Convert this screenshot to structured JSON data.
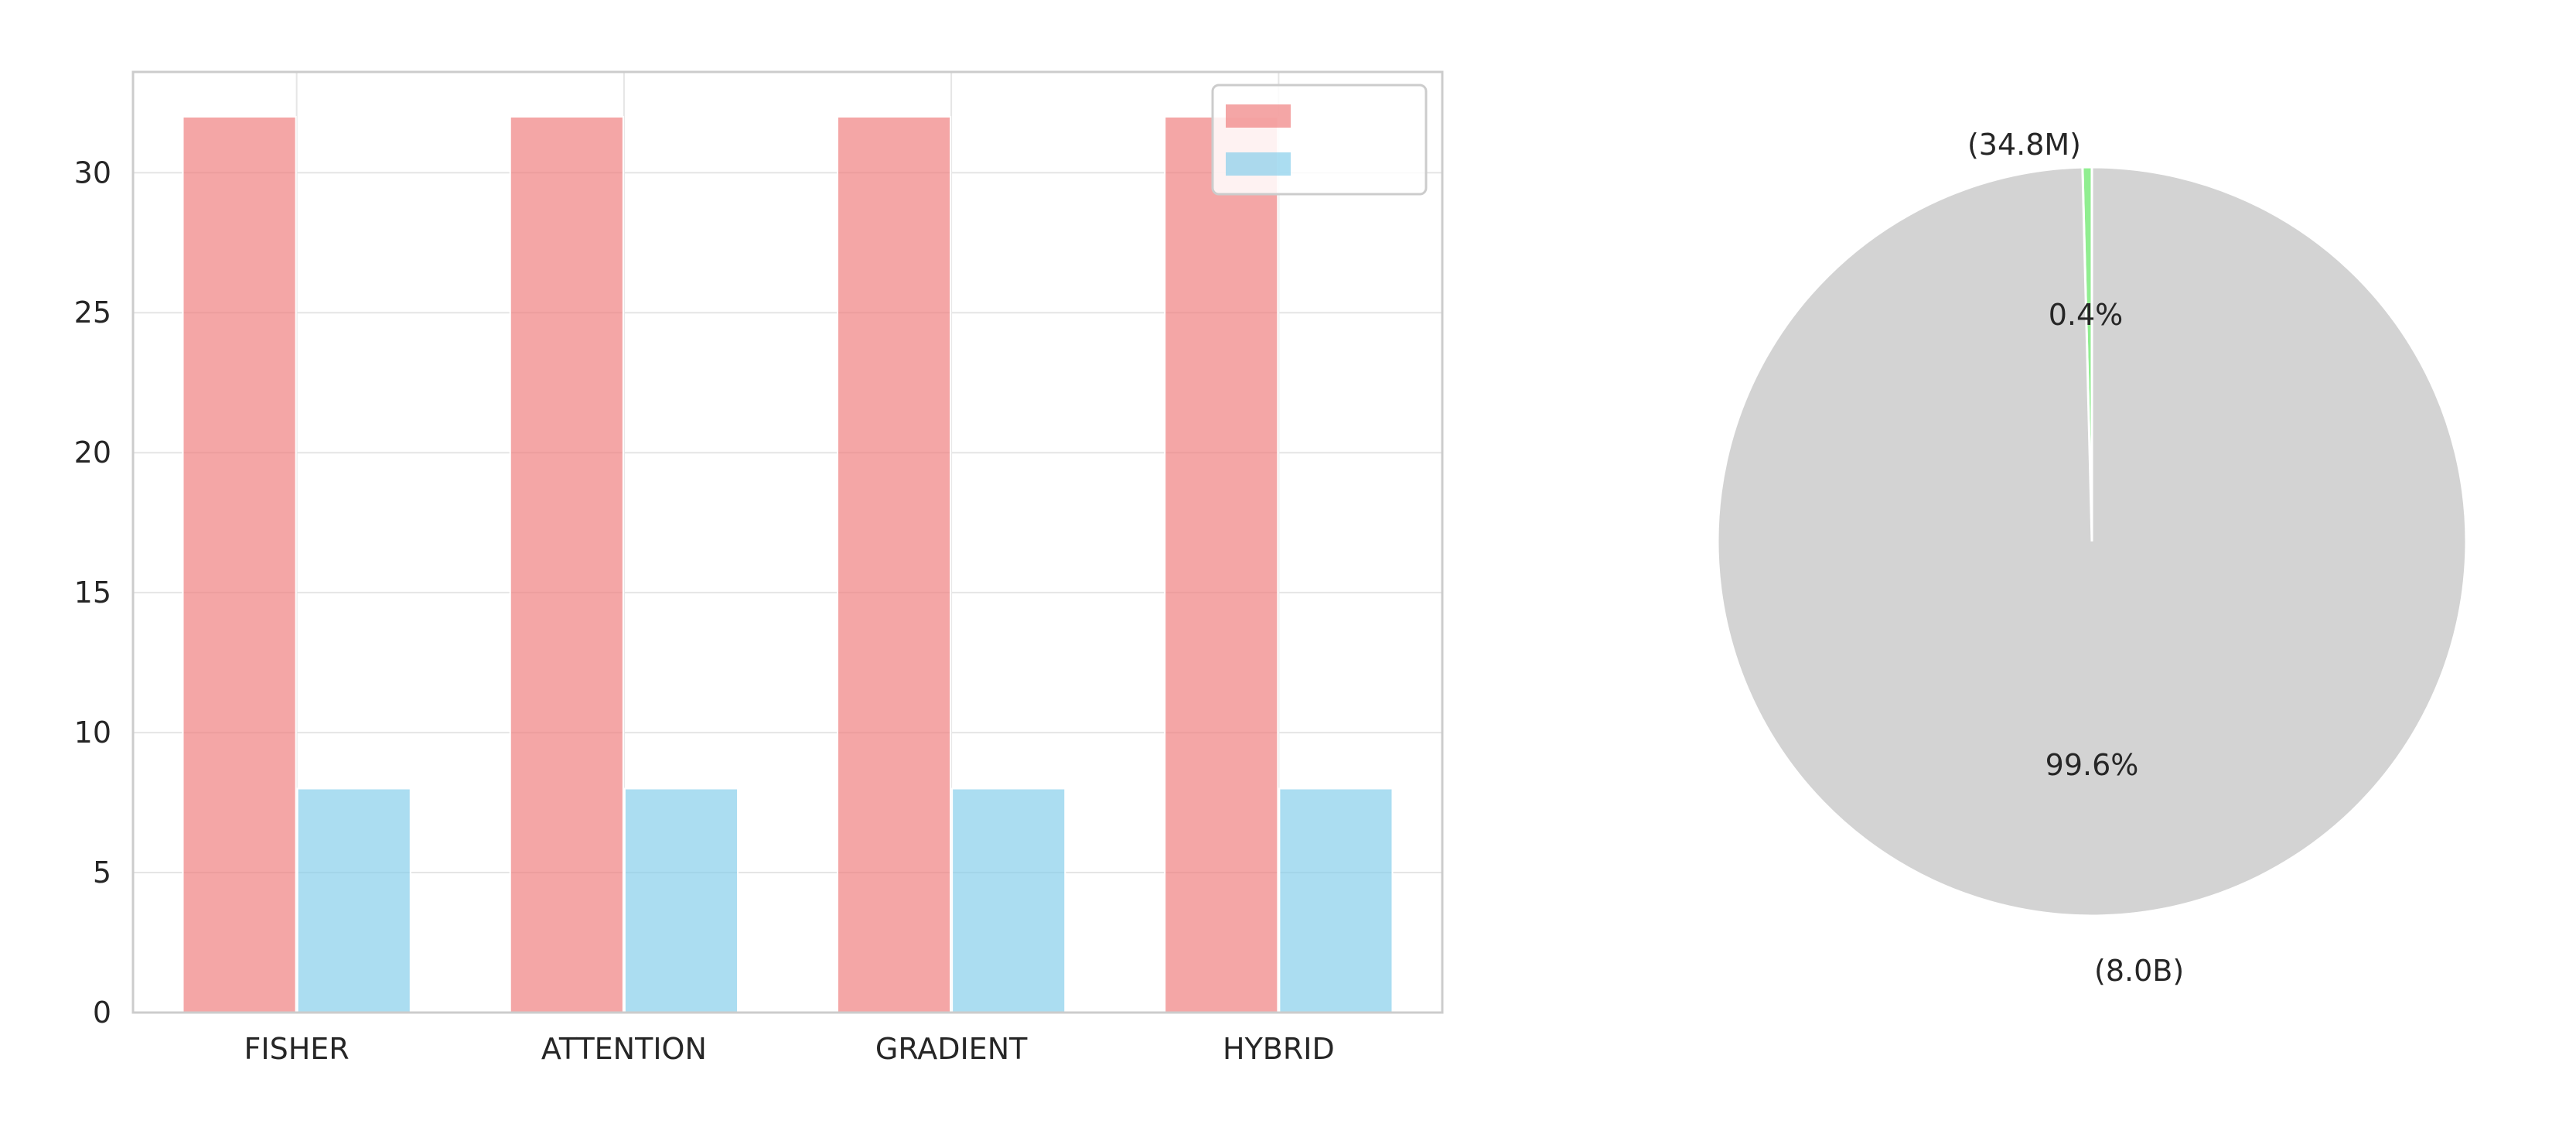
{
  "charts": [
    {
      "type": "bar",
      "title": "",
      "xlabel": "",
      "ylabel": "",
      "categories": [
        "FISHER",
        "ATTENTION",
        "GRADIENT",
        "HYBRID"
      ],
      "ylim": [
        0,
        33.6
      ],
      "yticks": [
        0,
        5,
        10,
        15,
        20,
        25,
        30
      ],
      "grid": true,
      "legend_position": "top-right",
      "series": [
        {
          "name": "",
          "values": [
            32,
            32,
            32,
            32
          ],
          "color": "#f08080"
        },
        {
          "name": "",
          "values": [
            8,
            8,
            8,
            8
          ],
          "color": "#87ceeb"
        }
      ]
    },
    {
      "type": "pie",
      "title": "",
      "slices": [
        {
          "label": "",
          "sublabel": "(34.8M)",
          "value": 0.4,
          "pct_label": "0.4%",
          "color": "#90ee90"
        },
        {
          "label": "",
          "sublabel": "(8.0B)",
          "value": 99.6,
          "pct_label": "99.6%",
          "color": "#d3d3d3"
        }
      ]
    }
  ]
}
